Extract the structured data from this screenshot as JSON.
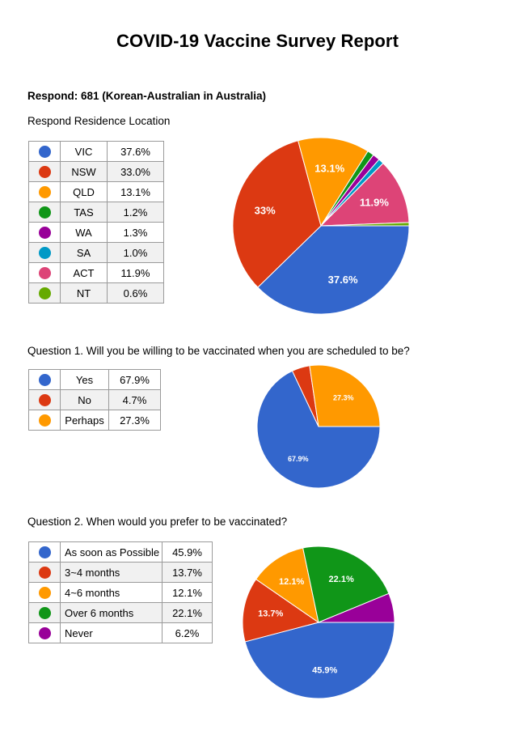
{
  "report": {
    "title": "COVID-19 Vaccine Survey Report",
    "respond": "Respond: 681 (Korean-Australian in Australia)"
  },
  "chart_data": [
    {
      "type": "pie",
      "title": "Respond Residence Location",
      "categories": [
        "VIC",
        "NSW",
        "QLD",
        "TAS",
        "WA",
        "SA",
        "ACT",
        "NT"
      ],
      "values": [
        37.6,
        33.0,
        13.1,
        1.2,
        1.3,
        1.0,
        11.9,
        0.6
      ],
      "legend_values": [
        "37.6%",
        "33.0%",
        "13.1%",
        "1.2%",
        "1.3%",
        "1.0%",
        "11.9%",
        "0.6%"
      ],
      "slice_labels": [
        "37.6%",
        "33%",
        "13.1%",
        "",
        "",
        "",
        "11.9%",
        ""
      ],
      "colors": [
        "#3366cc",
        "#dc3912",
        "#ff9900",
        "#109618",
        "#990099",
        "#0099c6",
        "#dd4477",
        "#66aa00"
      ]
    },
    {
      "type": "pie",
      "title": "Question 1. Will you be willing to be vaccinated when you are scheduled to be?",
      "categories": [
        "Yes",
        "No",
        "Perhaps"
      ],
      "values": [
        67.9,
        4.7,
        27.3
      ],
      "legend_values": [
        "67.9%",
        "4.7%",
        "27.3%"
      ],
      "slice_labels": [
        "67.9%",
        "",
        "27.3%"
      ],
      "colors": [
        "#3366cc",
        "#dc3912",
        "#ff9900"
      ]
    },
    {
      "type": "pie",
      "title": "Question 2. When would you prefer to be vaccinated?",
      "categories": [
        "As soon as Possible",
        "3~4 months",
        "4~6 months",
        "Over 6 months",
        "Never"
      ],
      "values": [
        45.9,
        13.7,
        12.1,
        22.1,
        6.2
      ],
      "legend_values": [
        "45.9%",
        "13.7%",
        "12.1%",
        "22.1%",
        "6.2%"
      ],
      "slice_labels": [
        "45.9%",
        "13.7%",
        "12.1%",
        "22.1%",
        ""
      ],
      "colors": [
        "#3366cc",
        "#dc3912",
        "#ff9900",
        "#109618",
        "#990099"
      ]
    }
  ]
}
